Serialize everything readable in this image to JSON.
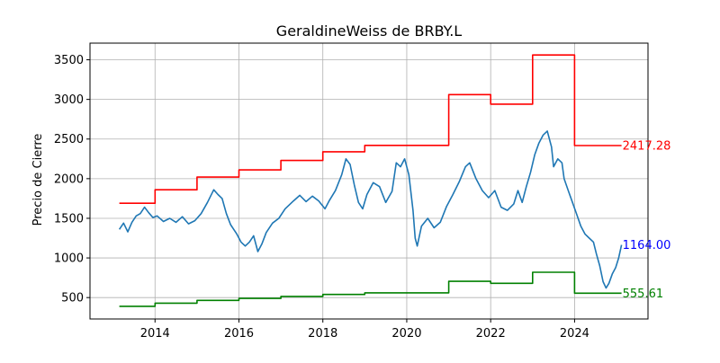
{
  "chart_data": {
    "type": "line",
    "title": "GeraldineWeiss de BRBY.L",
    "xlabel": "",
    "ylabel": "Precio de Cierre",
    "xlim": [
      2012.45,
      2025.75
    ],
    "ylim": [
      230,
      3710
    ],
    "x_ticks": [
      2014,
      2016,
      2018,
      2020,
      2022,
      2024
    ],
    "x_tick_labels": [
      "2014",
      "2016",
      "2018",
      "2020",
      "2022",
      "2024"
    ],
    "y_ticks": [
      500,
      1000,
      1500,
      2000,
      2500,
      3000,
      3500
    ],
    "y_tick_labels": [
      "500",
      "1000",
      "1500",
      "2000",
      "2500",
      "3000",
      "3500"
    ],
    "grid": true,
    "series": [
      {
        "role": "price",
        "color": "#1f77b4",
        "points": [
          [
            2013.15,
            1360
          ],
          [
            2013.25,
            1440
          ],
          [
            2013.35,
            1330
          ],
          [
            2013.45,
            1450
          ],
          [
            2013.55,
            1530
          ],
          [
            2013.65,
            1560
          ],
          [
            2013.75,
            1640
          ],
          [
            2013.85,
            1570
          ],
          [
            2013.95,
            1510
          ],
          [
            2014.05,
            1530
          ],
          [
            2014.2,
            1460
          ],
          [
            2014.35,
            1500
          ],
          [
            2014.5,
            1450
          ],
          [
            2014.65,
            1520
          ],
          [
            2014.8,
            1430
          ],
          [
            2014.95,
            1470
          ],
          [
            2015.1,
            1560
          ],
          [
            2015.25,
            1700
          ],
          [
            2015.4,
            1860
          ],
          [
            2015.5,
            1800
          ],
          [
            2015.6,
            1750
          ],
          [
            2015.7,
            1560
          ],
          [
            2015.8,
            1420
          ],
          [
            2015.95,
            1300
          ],
          [
            2016.05,
            1200
          ],
          [
            2016.15,
            1150
          ],
          [
            2016.25,
            1200
          ],
          [
            2016.35,
            1280
          ],
          [
            2016.45,
            1080
          ],
          [
            2016.55,
            1180
          ],
          [
            2016.65,
            1320
          ],
          [
            2016.8,
            1440
          ],
          [
            2016.95,
            1500
          ],
          [
            2017.1,
            1620
          ],
          [
            2017.3,
            1720
          ],
          [
            2017.45,
            1790
          ],
          [
            2017.6,
            1710
          ],
          [
            2017.75,
            1780
          ],
          [
            2017.9,
            1720
          ],
          [
            2018.05,
            1620
          ],
          [
            2018.15,
            1720
          ],
          [
            2018.3,
            1850
          ],
          [
            2018.45,
            2050
          ],
          [
            2018.55,
            2250
          ],
          [
            2018.65,
            2180
          ],
          [
            2018.75,
            1920
          ],
          [
            2018.85,
            1700
          ],
          [
            2018.95,
            1620
          ],
          [
            2019.05,
            1800
          ],
          [
            2019.2,
            1950
          ],
          [
            2019.35,
            1900
          ],
          [
            2019.5,
            1700
          ],
          [
            2019.65,
            1840
          ],
          [
            2019.75,
            2200
          ],
          [
            2019.85,
            2150
          ],
          [
            2019.95,
            2250
          ],
          [
            2020.05,
            2050
          ],
          [
            2020.15,
            1600
          ],
          [
            2020.2,
            1250
          ],
          [
            2020.25,
            1150
          ],
          [
            2020.35,
            1400
          ],
          [
            2020.5,
            1500
          ],
          [
            2020.65,
            1380
          ],
          [
            2020.8,
            1450
          ],
          [
            2020.95,
            1650
          ],
          [
            2021.1,
            1800
          ],
          [
            2021.25,
            1960
          ],
          [
            2021.4,
            2150
          ],
          [
            2021.5,
            2200
          ],
          [
            2021.65,
            2000
          ],
          [
            2021.8,
            1850
          ],
          [
            2021.95,
            1760
          ],
          [
            2022.1,
            1850
          ],
          [
            2022.25,
            1640
          ],
          [
            2022.4,
            1600
          ],
          [
            2022.55,
            1680
          ],
          [
            2022.65,
            1850
          ],
          [
            2022.75,
            1700
          ],
          [
            2022.85,
            1900
          ],
          [
            2022.95,
            2080
          ],
          [
            2023.05,
            2300
          ],
          [
            2023.15,
            2450
          ],
          [
            2023.25,
            2550
          ],
          [
            2023.35,
            2600
          ],
          [
            2023.45,
            2400
          ],
          [
            2023.5,
            2150
          ],
          [
            2023.6,
            2250
          ],
          [
            2023.7,
            2200
          ],
          [
            2023.75,
            2000
          ],
          [
            2023.85,
            1850
          ],
          [
            2023.95,
            1700
          ],
          [
            2024.05,
            1550
          ],
          [
            2024.15,
            1400
          ],
          [
            2024.25,
            1300
          ],
          [
            2024.35,
            1250
          ],
          [
            2024.45,
            1200
          ],
          [
            2024.52,
            1050
          ],
          [
            2024.6,
            900
          ],
          [
            2024.68,
            700
          ],
          [
            2024.75,
            620
          ],
          [
            2024.82,
            680
          ],
          [
            2024.9,
            800
          ],
          [
            2024.98,
            880
          ],
          [
            2025.05,
            1000
          ],
          [
            2025.12,
            1164
          ]
        ]
      },
      {
        "role": "overvalued",
        "color": "#ff0000",
        "points": [
          [
            2013.15,
            1690
          ],
          [
            2014.0,
            1690
          ],
          [
            2014.0,
            1860
          ],
          [
            2015.0,
            1860
          ],
          [
            2015.0,
            2020
          ],
          [
            2016.0,
            2020
          ],
          [
            2016.0,
            2110
          ],
          [
            2017.0,
            2110
          ],
          [
            2017.0,
            2230
          ],
          [
            2018.0,
            2230
          ],
          [
            2018.0,
            2340
          ],
          [
            2019.0,
            2340
          ],
          [
            2019.0,
            2420
          ],
          [
            2021.0,
            2420
          ],
          [
            2021.0,
            3060
          ],
          [
            2022.0,
            3060
          ],
          [
            2022.0,
            2940
          ],
          [
            2023.0,
            2940
          ],
          [
            2023.0,
            3560
          ],
          [
            2024.0,
            3560
          ],
          [
            2024.0,
            2417.28
          ],
          [
            2025.12,
            2417.28
          ]
        ]
      },
      {
        "role": "undervalued",
        "color": "#008000",
        "points": [
          [
            2013.15,
            390
          ],
          [
            2014.0,
            390
          ],
          [
            2014.0,
            430
          ],
          [
            2015.0,
            430
          ],
          [
            2015.0,
            465
          ],
          [
            2016.0,
            465
          ],
          [
            2016.0,
            490
          ],
          [
            2017.0,
            490
          ],
          [
            2017.0,
            515
          ],
          [
            2018.0,
            515
          ],
          [
            2018.0,
            540
          ],
          [
            2019.0,
            540
          ],
          [
            2019.0,
            560
          ],
          [
            2021.0,
            560
          ],
          [
            2021.0,
            705
          ],
          [
            2022.0,
            705
          ],
          [
            2022.0,
            680
          ],
          [
            2023.0,
            680
          ],
          [
            2023.0,
            820
          ],
          [
            2024.0,
            820
          ],
          [
            2024.0,
            555.61
          ],
          [
            2025.12,
            555.61
          ]
        ]
      }
    ],
    "annotations": [
      {
        "text": "2417.28",
        "x": 2025.12,
        "y": 2417.28,
        "color": "#ff0000"
      },
      {
        "text": "1164.00",
        "x": 2025.12,
        "y": 1164.0,
        "color": "#0000ff"
      },
      {
        "text": "555.61",
        "x": 2025.12,
        "y": 555.61,
        "color": "#008000"
      }
    ]
  }
}
